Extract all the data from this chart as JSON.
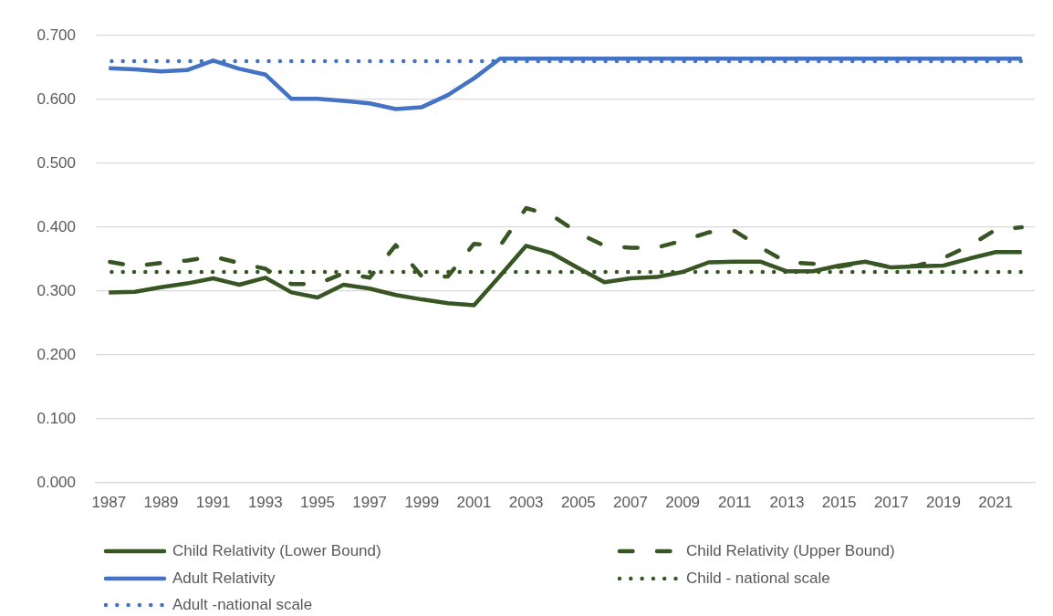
{
  "chart_data": {
    "type": "line",
    "categories": [
      "1987",
      null,
      "1989",
      null,
      "1991",
      null,
      "1993",
      null,
      "1995",
      null,
      "1997",
      null,
      "1999",
      null,
      "2001",
      null,
      "2003",
      null,
      "2005",
      null,
      "2007",
      null,
      "2009",
      null,
      "2011",
      null,
      "2013",
      null,
      "2015",
      null,
      "2017",
      null,
      "2019",
      null,
      "2021",
      null
    ],
    "ylim": [
      0,
      0.7
    ],
    "yticks": [
      {
        "value": 0,
        "label": "0.000"
      },
      {
        "value": 0.1,
        "label": "0.100"
      },
      {
        "value": 0.2,
        "label": "0.200"
      },
      {
        "value": 0.3,
        "label": "0.300"
      },
      {
        "value": 0.4,
        "label": "0.400"
      },
      {
        "value": 0.5,
        "label": "0.500"
      },
      {
        "value": 0.6,
        "label": "0.600"
      },
      {
        "value": 0.7,
        "label": "0.700"
      }
    ],
    "grid": "y",
    "legend": "bottom",
    "marker": "none",
    "series": [
      {
        "name": "Child Relativity (Lower Bound)",
        "color": "#375623",
        "line_style": "solid",
        "values": [
          0.298,
          0.299,
          0.306,
          0.312,
          0.32,
          0.31,
          0.321,
          0.298,
          0.29,
          0.31,
          0.304,
          0.294,
          0.287,
          0.281,
          0.278,
          0.324,
          0.371,
          0.359,
          0.336,
          0.314,
          0.32,
          0.322,
          0.33,
          0.345,
          0.346,
          0.346,
          0.331,
          0.331,
          0.34,
          0.346,
          0.337,
          0.339,
          0.34,
          0.351,
          0.361,
          0.361
        ]
      },
      {
        "name": "Child Relativity (Upper Bound)",
        "color": "#375623",
        "line_style": "dashed",
        "values": [
          0.346,
          0.339,
          0.344,
          0.348,
          0.354,
          0.344,
          0.335,
          0.311,
          0.311,
          0.328,
          0.321,
          0.372,
          0.323,
          0.323,
          0.374,
          0.371,
          0.43,
          0.418,
          0.391,
          0.371,
          0.368,
          0.368,
          0.379,
          0.392,
          0.394,
          0.368,
          0.345,
          0.343,
          0.338,
          0.346,
          0.337,
          0.34,
          0.352,
          0.371,
          0.396,
          0.4
        ]
      },
      {
        "name": "Adult Relativity",
        "color": "#4472c4",
        "line_style": "solid",
        "values": [
          0.649,
          0.647,
          0.644,
          0.646,
          0.661,
          0.648,
          0.639,
          0.601,
          0.601,
          0.598,
          0.594,
          0.585,
          0.588,
          0.607,
          0.633,
          0.664,
          0.664,
          0.664,
          0.664,
          0.664,
          0.664,
          0.664,
          0.664,
          0.664,
          0.664,
          0.664,
          0.664,
          0.664,
          0.664,
          0.664,
          0.664,
          0.664,
          0.664,
          0.664,
          0.664,
          0.664
        ]
      },
      {
        "name": "Child - national scale",
        "color": "#375623",
        "line_style": "dotted",
        "values": [
          0.33,
          0.33,
          0.33,
          0.33,
          0.33,
          0.33,
          0.33,
          0.33,
          0.33,
          0.33,
          0.33,
          0.33,
          0.33,
          0.33,
          0.33,
          0.33,
          0.33,
          0.33,
          0.33,
          0.33,
          0.33,
          0.33,
          0.33,
          0.33,
          0.33,
          0.33,
          0.33,
          0.33,
          0.33,
          0.33,
          0.33,
          0.33,
          0.33,
          0.33,
          0.33,
          0.33
        ]
      },
      {
        "name": "Adult -national scale",
        "color": "#4472c4",
        "line_style": "dotted",
        "values": [
          0.66,
          0.66,
          0.66,
          0.66,
          0.66,
          0.66,
          0.66,
          0.66,
          0.66,
          0.66,
          0.66,
          0.66,
          0.66,
          0.66,
          0.66,
          0.66,
          0.66,
          0.66,
          0.66,
          0.66,
          0.66,
          0.66,
          0.66,
          0.66,
          0.66,
          0.66,
          0.66,
          0.66,
          0.66,
          0.66,
          0.66,
          0.66,
          0.66,
          0.66,
          0.66,
          0.66
        ]
      }
    ]
  }
}
